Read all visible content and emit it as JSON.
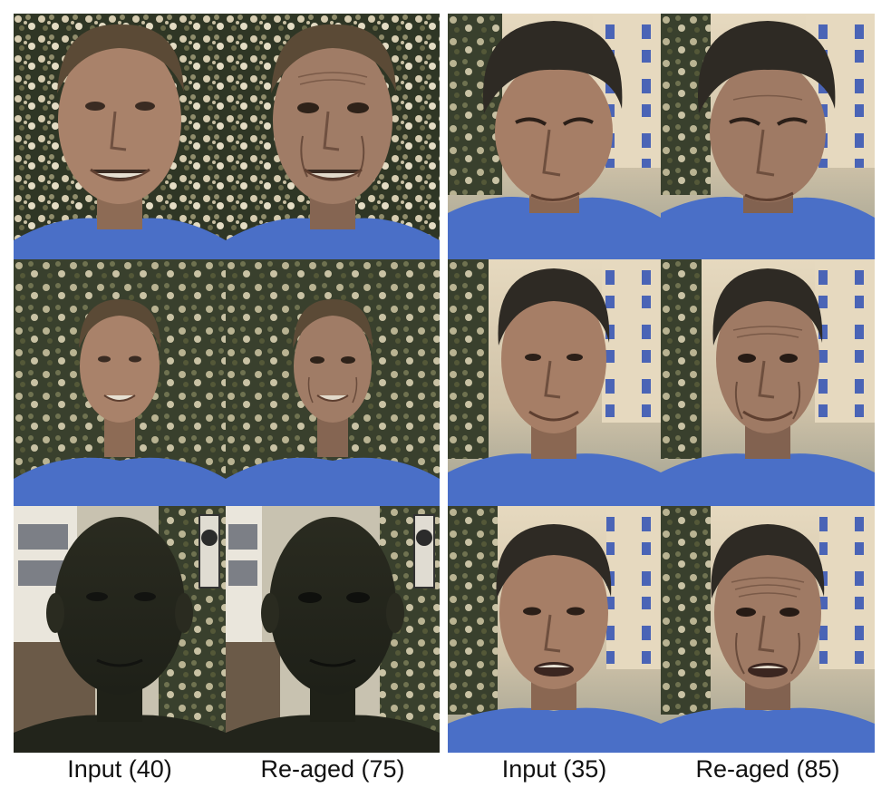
{
  "figure": {
    "captions": [
      "Input (40)",
      "Re-aged (75)",
      "Input (35)",
      "Re-aged (85)"
    ]
  },
  "colors": {
    "shirt": "#4a6fc7",
    "foliage_dark": "#2c3322",
    "foliage_light": "#d8cfb4",
    "skin": "#a9826a",
    "hair": "#3a3128",
    "building": "#e8dcc4",
    "window": "#4863b8"
  }
}
